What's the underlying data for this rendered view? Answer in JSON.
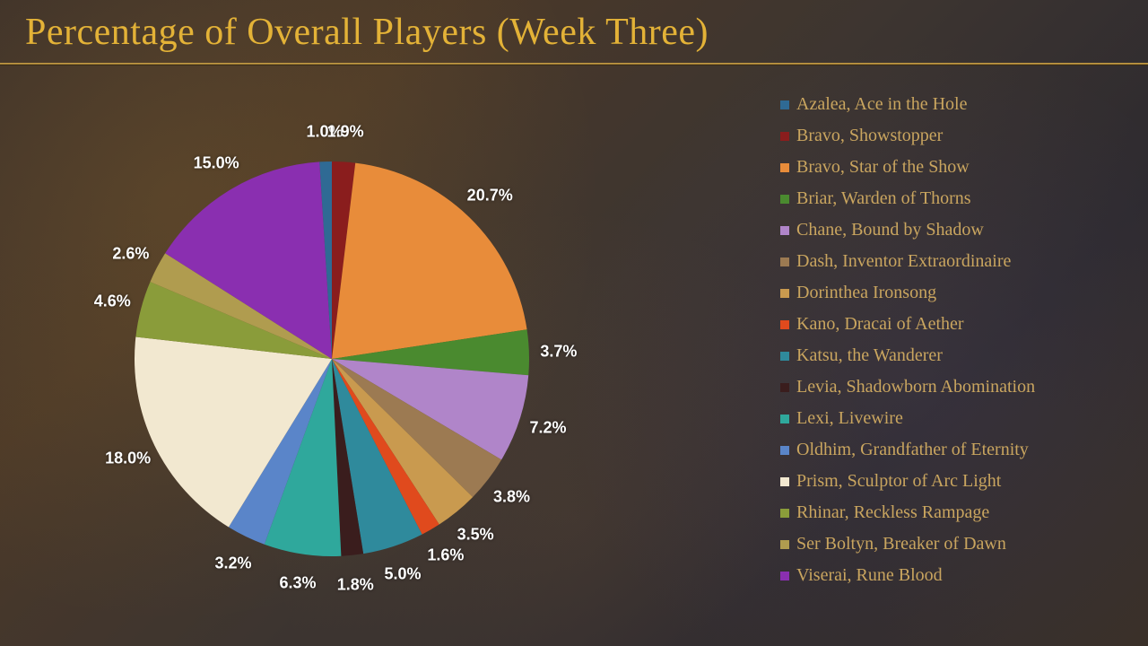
{
  "title": {
    "text": "Percentage of Overall Players (Week Three)",
    "color": "#e3b237",
    "fontsize": 42
  },
  "chart": {
    "type": "pie",
    "start_angle_deg": 0,
    "label_color": "#ffffff",
    "label_fontsize": 18,
    "label_font_family": "Arial, sans-serif",
    "label_radius_factor": 1.15,
    "slices": [
      {
        "name": "Azalea, Ace in the Hole",
        "value": 1.0,
        "color": "#2f6a94",
        "label": "1.0%"
      },
      {
        "name": "Bravo, Showstopper",
        "value": 1.9,
        "color": "#8a1d1d",
        "label": "1.9%"
      },
      {
        "name": "Bravo, Star of the Show",
        "value": 20.7,
        "color": "#e88c3a",
        "label": "20.7%"
      },
      {
        "name": "Briar, Warden of Thorns",
        "value": 3.7,
        "color": "#4a8a2f",
        "label": "3.7%"
      },
      {
        "name": "Chane, Bound by Shadow",
        "value": 7.2,
        "color": "#b085c9",
        "label": "7.2%"
      },
      {
        "name": "Dash, Inventor Extraordinaire",
        "value": 3.8,
        "color": "#9c7a52",
        "label": "3.8%"
      },
      {
        "name": "Dorinthea Ironsong",
        "value": 3.5,
        "color": "#c99a4f",
        "label": "3.5%"
      },
      {
        "name": "Kano, Dracai of Aether",
        "value": 1.6,
        "color": "#e04a1d",
        "label": "1.6%"
      },
      {
        "name": "Katsu, the Wanderer",
        "value": 5.0,
        "color": "#2f8a9c",
        "label": "5.0%"
      },
      {
        "name": "Levia, Shadowborn Abomination",
        "value": 1.8,
        "color": "#3a1d1d",
        "label": "1.8%"
      },
      {
        "name": "Lexi, Livewire",
        "value": 6.3,
        "color": "#2fa89c",
        "label": "6.3%"
      },
      {
        "name": "Oldhim, Grandfather of Eternity",
        "value": 3.2,
        "color": "#5a85c9",
        "label": "3.2%"
      },
      {
        "name": "Prism, Sculptor of Arc Light",
        "value": 18.0,
        "color": "#f2e8d0",
        "label": "18.0%"
      },
      {
        "name": "Rhinar, Reckless Rampage",
        "value": 4.6,
        "color": "#8a9c3a",
        "label": "4.6%"
      },
      {
        "name": "Ser Boltyn, Breaker of Dawn",
        "value": 2.6,
        "color": "#b09c4f",
        "label": "2.6%"
      },
      {
        "name": "Viserai, Rune Blood",
        "value": 15.0,
        "color": "#8a2fb0",
        "label": "15.0%"
      }
    ]
  },
  "legend": {
    "label_color": "#c9a55f",
    "label_fontsize": 20,
    "swatch_size": 10
  }
}
